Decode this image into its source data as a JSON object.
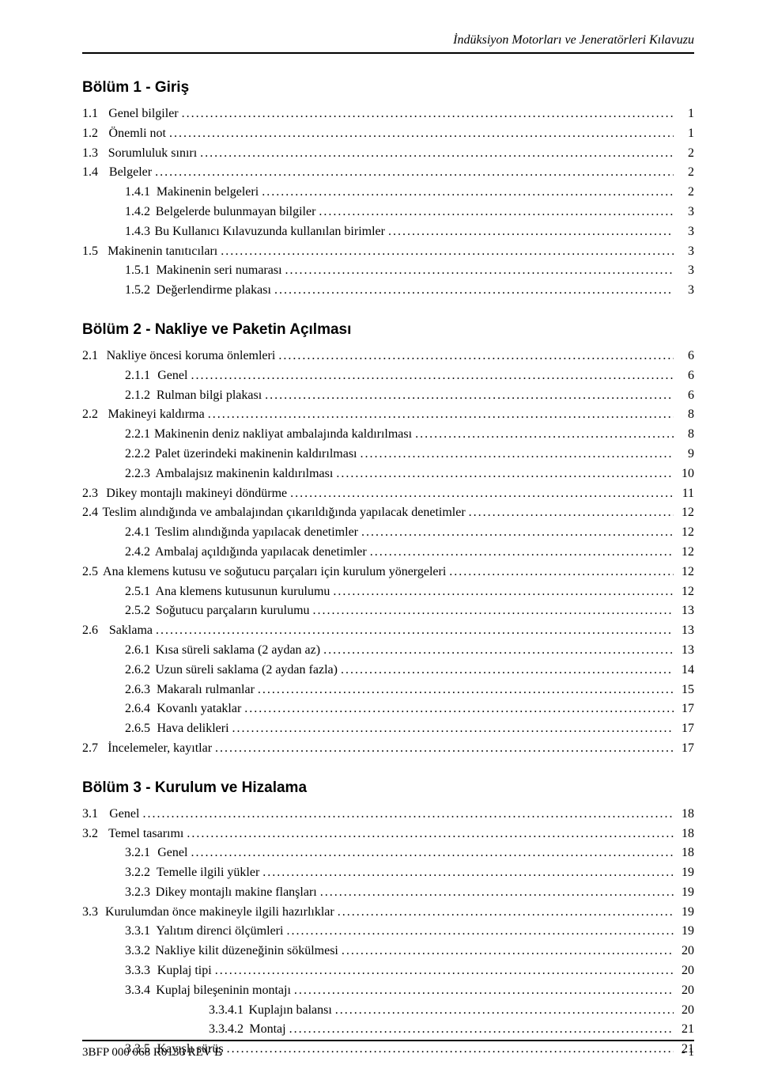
{
  "running_head": "İndüksiyon Motorları ve Jeneratörleri Kılavuzu",
  "footer_left": "3BFP 000 068 R0130 REV E",
  "footer_right": "- 1",
  "gaps": {
    "l1": 28,
    "l2": 20,
    "l3": 20
  },
  "sections": [
    {
      "title": "Bölüm 1 - Giriş",
      "entries": [
        {
          "lvl": 1,
          "num": "1.1",
          "text": "Genel bilgiler",
          "page": "1"
        },
        {
          "lvl": 1,
          "num": "1.2",
          "text": "Önemli not",
          "page": "1"
        },
        {
          "lvl": 1,
          "num": "1.3",
          "text": "Sorumluluk sınırı",
          "page": "2"
        },
        {
          "lvl": 1,
          "num": "1.4",
          "text": "Belgeler",
          "page": "2"
        },
        {
          "lvl": 2,
          "num": "1.4.1",
          "text": "Makinenin belgeleri",
          "page": "2"
        },
        {
          "lvl": 2,
          "num": "1.4.2",
          "text": "Belgelerde bulunmayan bilgiler",
          "page": "3"
        },
        {
          "lvl": 2,
          "num": "1.4.3",
          "text": "Bu Kullanıcı Kılavuzunda kullanılan birimler",
          "page": "3"
        },
        {
          "lvl": 1,
          "num": "1.5",
          "text": "Makinenin tanıtıcıları",
          "page": "3"
        },
        {
          "lvl": 2,
          "num": "1.5.1",
          "text": "Makinenin seri numarası",
          "page": "3"
        },
        {
          "lvl": 2,
          "num": "1.5.2",
          "text": "Değerlendirme plakası",
          "page": "3"
        }
      ]
    },
    {
      "title": "Bölüm 2 - Nakliye ve Paketin Açılması",
      "entries": [
        {
          "lvl": 1,
          "num": "2.1",
          "text": "Nakliye öncesi koruma önlemleri",
          "page": "6"
        },
        {
          "lvl": 2,
          "num": "2.1.1",
          "text": "Genel",
          "page": "6"
        },
        {
          "lvl": 2,
          "num": "2.1.2",
          "text": "Rulman bilgi plakası",
          "page": "6"
        },
        {
          "lvl": 1,
          "num": "2.2",
          "text": "Makineyi kaldırma",
          "page": "8"
        },
        {
          "lvl": 2,
          "num": "2.2.1",
          "text": "Makinenin deniz nakliyat ambalajında kaldırılması",
          "page": "8"
        },
        {
          "lvl": 2,
          "num": "2.2.2",
          "text": "Palet üzerindeki makinenin kaldırılması",
          "page": "9"
        },
        {
          "lvl": 2,
          "num": "2.2.3",
          "text": "Ambalajsız makinenin kaldırılması",
          "page": "10"
        },
        {
          "lvl": 1,
          "num": "2.3",
          "text": "Dikey montajlı makineyi döndürme",
          "page": "11"
        },
        {
          "lvl": 1,
          "num": "2.4",
          "text": "Teslim alındığında ve ambalajından çıkarıldığında yapılacak denetimler",
          "page": "12"
        },
        {
          "lvl": 2,
          "num": "2.4.1",
          "text": "Teslim alındığında yapılacak denetimler",
          "page": "12"
        },
        {
          "lvl": 2,
          "num": "2.4.2",
          "text": "Ambalaj açıldığında yapılacak denetimler",
          "page": "12"
        },
        {
          "lvl": 1,
          "num": "2.5",
          "text": "Ana klemens kutusu ve soğutucu parçaları için kurulum yönergeleri",
          "page": "12"
        },
        {
          "lvl": 2,
          "num": "2.5.1",
          "text": "Ana klemens kutusunun kurulumu",
          "page": "12"
        },
        {
          "lvl": 2,
          "num": "2.5.2",
          "text": "Soğutucu parçaların kurulumu",
          "page": "13"
        },
        {
          "lvl": 1,
          "num": "2.6",
          "text": "Saklama",
          "page": "13"
        },
        {
          "lvl": 2,
          "num": "2.6.1",
          "text": "Kısa süreli saklama (2 aydan az)",
          "page": "13"
        },
        {
          "lvl": 2,
          "num": "2.6.2",
          "text": "Uzun süreli saklama (2 aydan fazla)",
          "page": "14"
        },
        {
          "lvl": 2,
          "num": "2.6.3",
          "text": "Makaralı rulmanlar",
          "page": "15"
        },
        {
          "lvl": 2,
          "num": "2.6.4",
          "text": "Kovanlı yataklar",
          "page": "17"
        },
        {
          "lvl": 2,
          "num": "2.6.5",
          "text": "Hava delikleri",
          "page": "17"
        },
        {
          "lvl": 1,
          "num": "2.7",
          "text": "İncelemeler, kayıtlar",
          "page": "17"
        }
      ]
    },
    {
      "title": "Bölüm 3 - Kurulum ve Hizalama",
      "entries": [
        {
          "lvl": 1,
          "num": "3.1",
          "text": "Genel",
          "page": "18"
        },
        {
          "lvl": 1,
          "num": "3.2",
          "text": "Temel tasarımı",
          "page": "18"
        },
        {
          "lvl": 2,
          "num": "3.2.1",
          "text": "Genel",
          "page": "18"
        },
        {
          "lvl": 2,
          "num": "3.2.2",
          "text": "Temelle ilgili yükler",
          "page": "19"
        },
        {
          "lvl": 2,
          "num": "3.2.3",
          "text": "Dikey montajlı makine flanşları",
          "page": "19"
        },
        {
          "lvl": 1,
          "num": "3.3",
          "text": "Kurulumdan önce makineyle ilgili hazırlıklar",
          "page": "19"
        },
        {
          "lvl": 2,
          "num": "3.3.1",
          "text": "Yalıtım direnci ölçümleri",
          "page": "19"
        },
        {
          "lvl": 2,
          "num": "3.3.2",
          "text": "Nakliye kilit düzeneğinin sökülmesi",
          "page": "20"
        },
        {
          "lvl": 2,
          "num": "3.3.3",
          "text": "Kuplaj tipi",
          "page": "20"
        },
        {
          "lvl": 2,
          "num": "3.3.4",
          "text": "Kuplaj bileşeninin montajı",
          "page": "20"
        },
        {
          "lvl": 3,
          "num": "3.3.4.1",
          "text": "Kuplajın balansı",
          "page": "20"
        },
        {
          "lvl": 3,
          "num": "3.3.4.2",
          "text": "Montaj",
          "page": "21"
        },
        {
          "lvl": 2,
          "num": "3.3.5",
          "text": "Kayışlı sürüş",
          "page": "21"
        }
      ]
    }
  ]
}
